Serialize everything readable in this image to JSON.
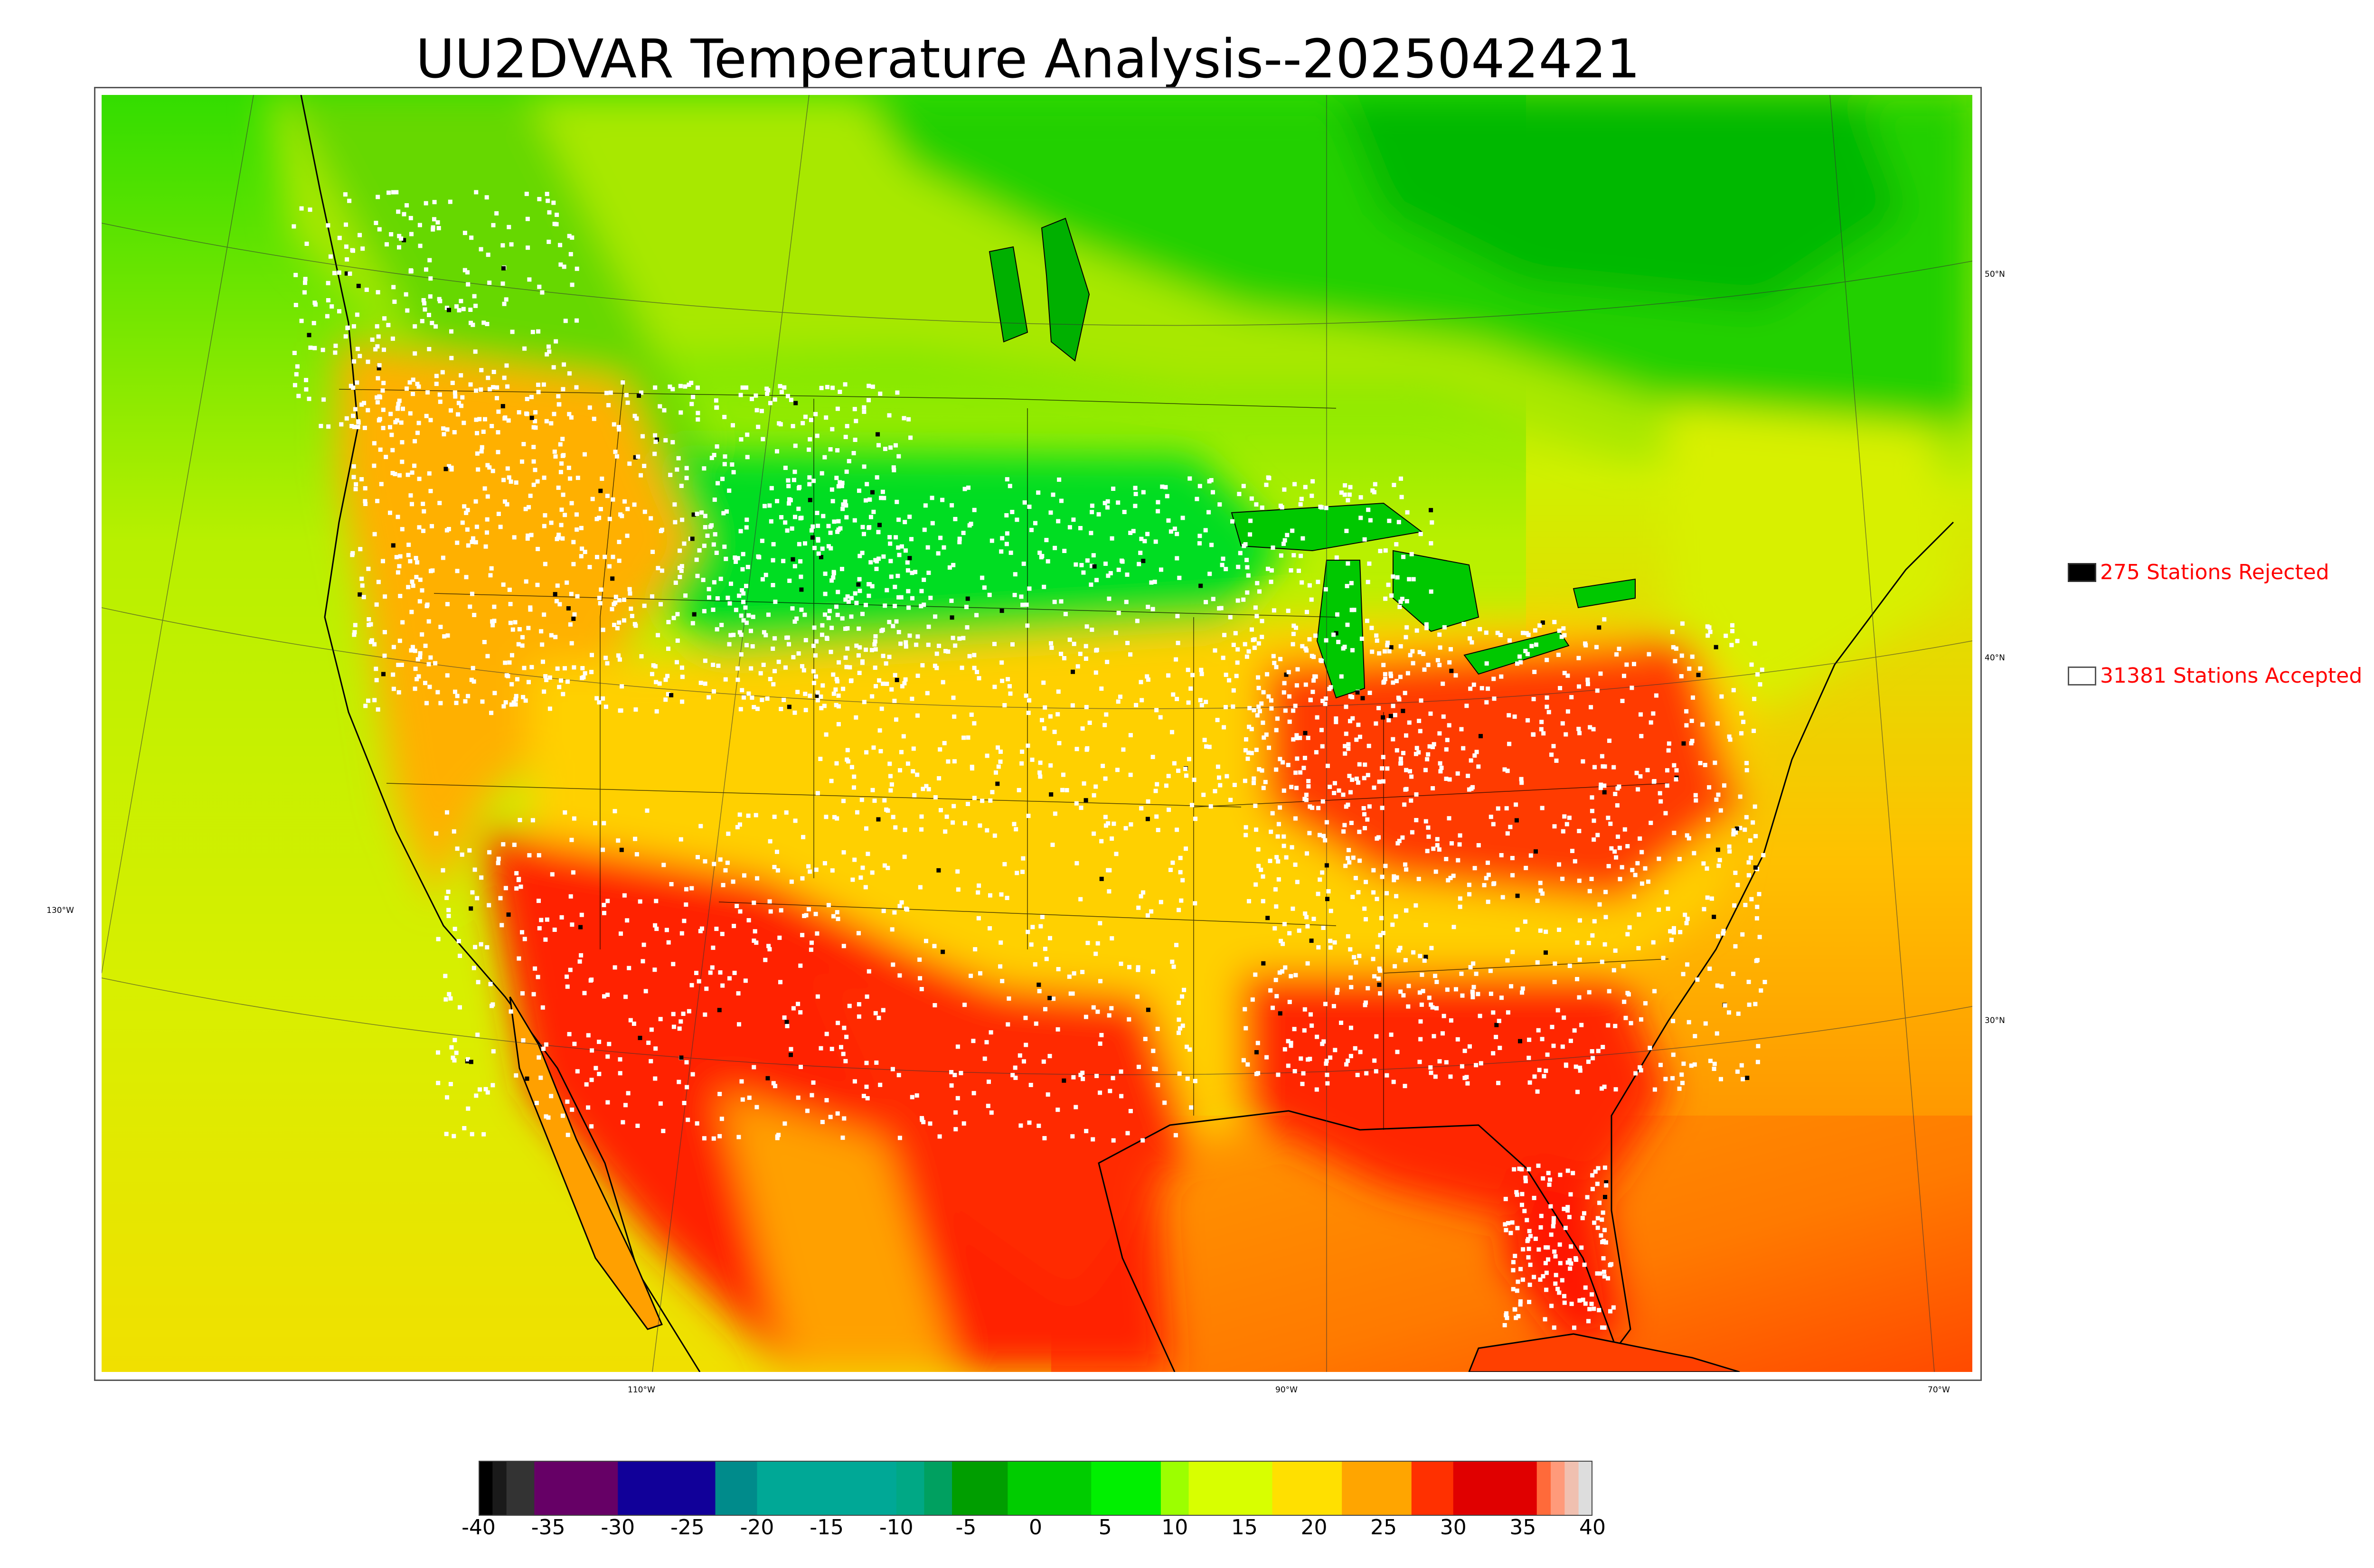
{
  "title": "UU2DVAR Temperature Analysis--2025042421",
  "map": {
    "longitude_labels": [
      "130°W",
      "110°W",
      "90°W",
      "70°W"
    ],
    "latitude_labels": [
      "50°N",
      "40°N",
      "30°N"
    ]
  },
  "legend": {
    "rejected": {
      "label": "275 Stations Rejected",
      "color": "#000000"
    },
    "accepted": {
      "label": "31381 Stations Accepted",
      "color": "#ffffff"
    }
  },
  "colorbar": {
    "min": -40,
    "max": 40,
    "ticks": [
      "-40",
      "-35",
      "-30",
      "-25",
      "-20",
      "-15",
      "-10",
      "-5",
      "0",
      "5",
      "10",
      "15",
      "20",
      "25",
      "30",
      "35",
      "40"
    ],
    "bands": [
      {
        "from": -40,
        "to": -39,
        "color": "#000000"
      },
      {
        "from": -39,
        "to": -38,
        "color": "#1a1a1a"
      },
      {
        "from": -38,
        "to": -36,
        "color": "#333333"
      },
      {
        "from": -36,
        "to": -30,
        "color": "#660066"
      },
      {
        "from": -30,
        "to": -23,
        "color": "#110099"
      },
      {
        "from": -23,
        "to": -20,
        "color": "#008b8b"
      },
      {
        "from": -20,
        "to": -10,
        "color": "#00a896"
      },
      {
        "from": -10,
        "to": -8,
        "color": "#00a885"
      },
      {
        "from": -8,
        "to": -6,
        "color": "#00a060"
      },
      {
        "from": -6,
        "to": -2,
        "color": "#009e00"
      },
      {
        "from": -2,
        "to": 4,
        "color": "#00cc00"
      },
      {
        "from": 4,
        "to": 9,
        "color": "#00f000"
      },
      {
        "from": 9,
        "to": 11,
        "color": "#9cff00"
      },
      {
        "from": 11,
        "to": 17,
        "color": "#d8ff00"
      },
      {
        "from": 17,
        "to": 22,
        "color": "#ffe000"
      },
      {
        "from": 22,
        "to": 27,
        "color": "#ffa500"
      },
      {
        "from": 27,
        "to": 30,
        "color": "#ff3000"
      },
      {
        "from": 30,
        "to": 36,
        "color": "#e00000"
      },
      {
        "from": 36,
        "to": 37,
        "color": "#ff6a3a"
      },
      {
        "from": 37,
        "to": 38,
        "color": "#ff9a7a"
      },
      {
        "from": 38,
        "to": 39,
        "color": "#f0c0b0"
      },
      {
        "from": 39,
        "to": 40,
        "color": "#dddddd"
      }
    ]
  },
  "field_colors": {
    "ocean_west": "#d8ef00",
    "ocean_west_south": "#e6e600",
    "canada_south": "#9ee60a",
    "canada_north": "#2ad400",
    "hudson": "#00b400",
    "plains_cool": "#00dd22",
    "warm_yellow": "#ffe000",
    "warm_orange": "#ffa500",
    "hot_red": "#ff2200",
    "very_hot": "#e00000",
    "gulf": "#ff8a00",
    "atlantic": "#ffb000"
  }
}
